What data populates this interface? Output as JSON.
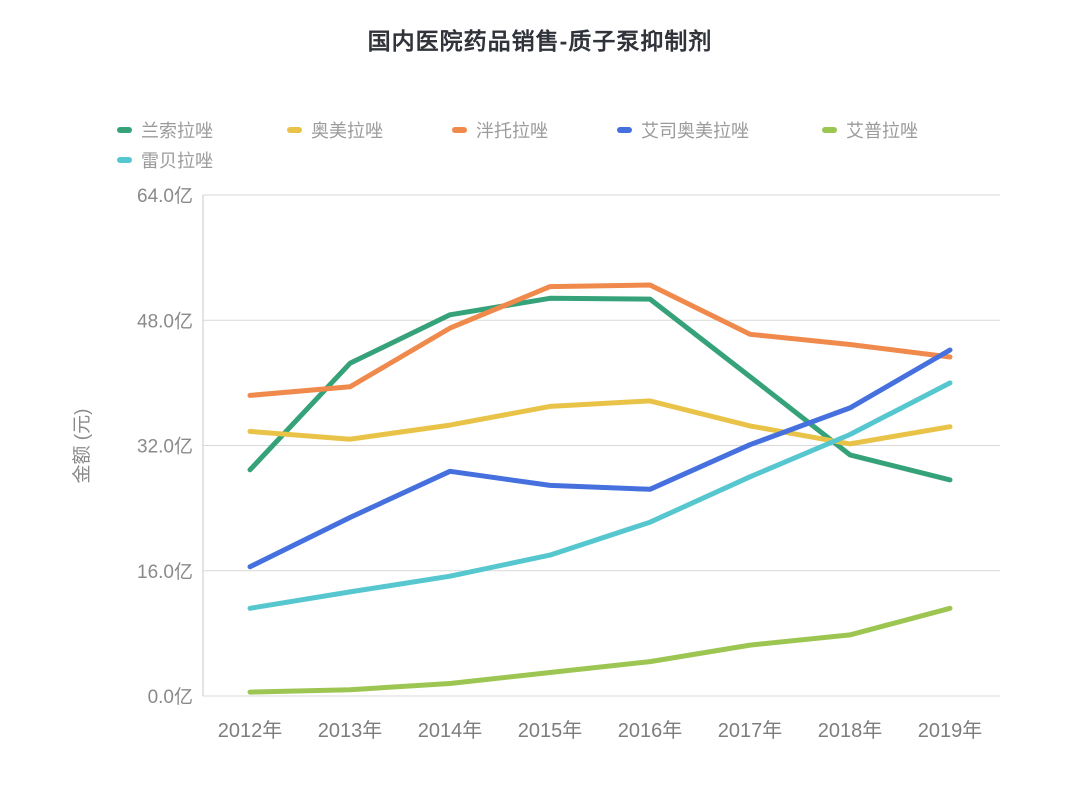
{
  "page": {
    "title": "国内医院药品销售-质子泵抑制剂"
  },
  "y_axis": {
    "title": "金额 (元)",
    "ticks": [
      {
        "label": "0.0亿",
        "value": 0
      },
      {
        "label": "16.0亿",
        "value": 16
      },
      {
        "label": "32.0亿",
        "value": 32
      },
      {
        "label": "48.0亿",
        "value": 48
      },
      {
        "label": "64.0亿",
        "value": 64
      }
    ]
  },
  "x_axis": {
    "labels": [
      "2012年",
      "2013年",
      "2014年",
      "2015年",
      "2016年",
      "2017年",
      "2018年",
      "2019年"
    ]
  },
  "chart_data": {
    "type": "line",
    "title": "国内医院药品销售-质子泵抑制剂",
    "xlabel": "",
    "ylabel": "金额 (元)",
    "ylim": [
      0,
      64
    ],
    "grid": true,
    "legend_position": "top",
    "categories": [
      "2012年",
      "2013年",
      "2014年",
      "2015年",
      "2016年",
      "2017年",
      "2018年",
      "2019年"
    ],
    "series": [
      {
        "name": "兰索拉唑",
        "color": "#35a27a",
        "values": [
          28.9,
          42.5,
          48.7,
          50.8,
          50.7,
          40.8,
          30.8,
          27.6
        ]
      },
      {
        "name": "奥美拉唑",
        "color": "#e9c348",
        "values": [
          33.8,
          32.8,
          34.6,
          37.0,
          37.7,
          34.5,
          32.2,
          34.4
        ]
      },
      {
        "name": "泮托拉唑",
        "color": "#ef8a4c",
        "values": [
          38.4,
          39.5,
          47.0,
          52.3,
          52.5,
          46.2,
          44.9,
          43.3
        ]
      },
      {
        "name": "艾司奥美拉唑",
        "color": "#4570dd",
        "values": [
          16.5,
          22.8,
          28.7,
          26.9,
          26.4,
          32.1,
          36.8,
          44.2
        ]
      },
      {
        "name": "艾普拉唑",
        "color": "#9dc552",
        "values": [
          0.5,
          0.8,
          1.6,
          3.0,
          4.4,
          6.5,
          7.8,
          11.2
        ]
      },
      {
        "name": "雷贝拉唑",
        "color": "#57c7cf",
        "values": [
          11.2,
          13.3,
          15.3,
          18.0,
          22.2,
          28.0,
          33.4,
          40.0
        ]
      }
    ]
  }
}
